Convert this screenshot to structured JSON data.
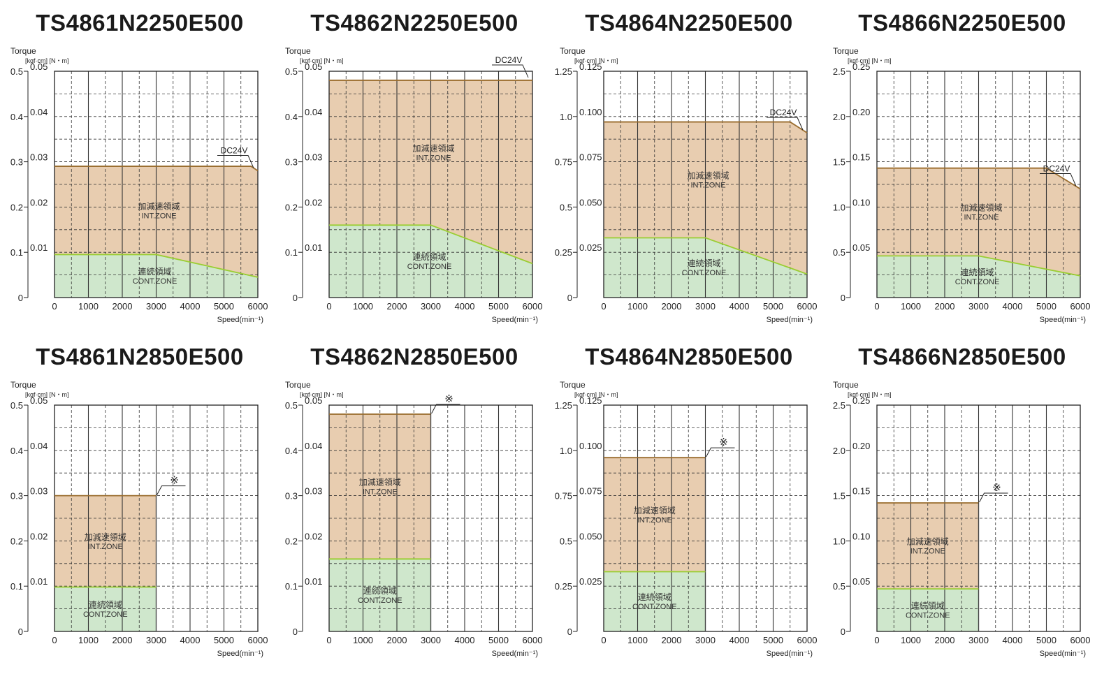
{
  "labels": {
    "torque": "Torque",
    "units": "[kgf·cm] [N・m]",
    "speed": "Speed(min⁻¹)",
    "int_zone_jp": "加減速領域",
    "int_zone_en": "INT.ZONE",
    "cont_zone_jp": "連続領域",
    "cont_zone_en": "CONT.ZONE"
  },
  "colors": {
    "int_zone": "#e8cdb0",
    "cont_zone": "#cfe7cc",
    "int_line": "#9a6d2e",
    "cont_line": "#9acd32",
    "grid": "#333333"
  },
  "chart_data": [
    {
      "type": "area",
      "title": "TS4861N2250E500",
      "xlabel": "Speed(min⁻¹)",
      "ylabel": "Torque",
      "x_ticks": [
        "0",
        "1000",
        "2000",
        "3000",
        "4000",
        "5000",
        "6000"
      ],
      "y_ticks_kgfcm": [
        "0",
        "0.1",
        "0.2",
        "0.3",
        "0.4",
        "0.5"
      ],
      "y_ticks_nm": [
        "0.01",
        "0.02",
        "0.03",
        "0.04",
        "0.05"
      ],
      "xlim": [
        0,
        6000
      ],
      "ylim_nm": [
        0,
        0.05
      ],
      "grid": true,
      "series": [
        {
          "name": "INT.ZONE",
          "x": [
            0,
            5800,
            6000
          ],
          "y": [
            0.029,
            0.029,
            0.028
          ]
        },
        {
          "name": "CONT.ZONE",
          "x": [
            0,
            3000,
            6000
          ],
          "y": [
            0.0095,
            0.0095,
            0.0045
          ]
        }
      ],
      "annotation": "DC24V"
    },
    {
      "type": "area",
      "title": "TS4862N2250E500",
      "xlabel": "Speed(min⁻¹)",
      "ylabel": "Torque",
      "x_ticks": [
        "0",
        "1000",
        "2000",
        "3000",
        "4000",
        "5000",
        "6000"
      ],
      "y_ticks_kgfcm": [
        "0",
        "0.1",
        "0.2",
        "0.3",
        "0.4",
        "0.5"
      ],
      "y_ticks_nm": [
        "0.01",
        "0.02",
        "0.03",
        "0.04",
        "0.05"
      ],
      "xlim": [
        0,
        6000
      ],
      "ylim_nm": [
        0,
        0.05
      ],
      "grid": true,
      "series": [
        {
          "name": "INT.ZONE",
          "x": [
            0,
            6000
          ],
          "y": [
            0.048,
            0.048
          ]
        },
        {
          "name": "CONT.ZONE",
          "x": [
            0,
            3000,
            6000
          ],
          "y": [
            0.016,
            0.016,
            0.0075
          ]
        }
      ],
      "annotation": "DC24V"
    },
    {
      "type": "area",
      "title": "TS4864N2250E500",
      "xlabel": "Speed(min⁻¹)",
      "ylabel": "Torque",
      "x_ticks": [
        "0",
        "1000",
        "2000",
        "3000",
        "4000",
        "5000",
        "6000"
      ],
      "y_ticks_kgfcm": [
        "0",
        "0.25",
        "0.5",
        "0.75",
        "1.0",
        "1.25"
      ],
      "y_ticks_nm": [
        "0.025",
        "0.050",
        "0.075",
        "0.100",
        "0.125"
      ],
      "xlim": [
        0,
        6000
      ],
      "ylim_nm": [
        0,
        0.125
      ],
      "grid": true,
      "series": [
        {
          "name": "INT.ZONE",
          "x": [
            0,
            5500,
            6000
          ],
          "y": [
            0.097,
            0.097,
            0.091
          ]
        },
        {
          "name": "CONT.ZONE",
          "x": [
            0,
            3000,
            6000
          ],
          "y": [
            0.033,
            0.033,
            0.013
          ]
        }
      ],
      "annotation": "DC24V"
    },
    {
      "type": "area",
      "title": "TS4866N2250E500",
      "xlabel": "Speed(min⁻¹)",
      "ylabel": "Torque",
      "x_ticks": [
        "0",
        "1000",
        "2000",
        "3000",
        "4000",
        "5000",
        "6000"
      ],
      "y_ticks_kgfcm": [
        "0",
        "0.5",
        "1.0",
        "1.5",
        "2.0",
        "2.5"
      ],
      "y_ticks_nm": [
        "0.05",
        "0.10",
        "0.15",
        "0.20",
        "0.25"
      ],
      "xlim": [
        0,
        6000
      ],
      "ylim_nm": [
        0,
        0.25
      ],
      "grid": true,
      "series": [
        {
          "name": "INT.ZONE",
          "x": [
            0,
            5000,
            6000
          ],
          "y": [
            0.143,
            0.143,
            0.12
          ]
        },
        {
          "name": "CONT.ZONE",
          "x": [
            0,
            3000,
            6000
          ],
          "y": [
            0.046,
            0.046,
            0.024
          ]
        }
      ],
      "annotation": "DC24V"
    },
    {
      "type": "area",
      "title": "TS4861N2850E500",
      "xlabel": "Speed(min⁻¹)",
      "ylabel": "Torque",
      "x_ticks": [
        "0",
        "1000",
        "2000",
        "3000",
        "4000",
        "5000",
        "6000"
      ],
      "y_ticks_kgfcm": [
        "0",
        "0.1",
        "0.2",
        "0.3",
        "0.4",
        "0.5"
      ],
      "y_ticks_nm": [
        "0.01",
        "0.02",
        "0.03",
        "0.04",
        "0.05"
      ],
      "xlim": [
        0,
        6000
      ],
      "ylim_nm": [
        0,
        0.05
      ],
      "grid": true,
      "series": [
        {
          "name": "INT.ZONE",
          "x": [
            0,
            3000
          ],
          "y": [
            0.03,
            0.03
          ]
        },
        {
          "name": "CONT.ZONE",
          "x": [
            0,
            3000
          ],
          "y": [
            0.0098,
            0.0098
          ]
        }
      ],
      "annotation": "※"
    },
    {
      "type": "area",
      "title": "TS4862N2850E500",
      "xlabel": "Speed(min⁻¹)",
      "ylabel": "Torque",
      "x_ticks": [
        "0",
        "1000",
        "2000",
        "3000",
        "4000",
        "5000",
        "6000"
      ],
      "y_ticks_kgfcm": [
        "0",
        "0.1",
        "0.2",
        "0.3",
        "0.4",
        "0.5"
      ],
      "y_ticks_nm": [
        "0.01",
        "0.02",
        "0.03",
        "0.04",
        "0.05"
      ],
      "xlim": [
        0,
        6000
      ],
      "ylim_nm": [
        0,
        0.05
      ],
      "grid": true,
      "series": [
        {
          "name": "INT.ZONE",
          "x": [
            0,
            3000
          ],
          "y": [
            0.048,
            0.048
          ]
        },
        {
          "name": "CONT.ZONE",
          "x": [
            0,
            3000
          ],
          "y": [
            0.016,
            0.016
          ]
        }
      ],
      "annotation": "※"
    },
    {
      "type": "area",
      "title": "TS4864N2850E500",
      "xlabel": "Speed(min⁻¹)",
      "ylabel": "Torque",
      "x_ticks": [
        "0",
        "1000",
        "2000",
        "3000",
        "4000",
        "5000",
        "6000"
      ],
      "y_ticks_kgfcm": [
        "0",
        "0.25",
        "0.5",
        "0.75",
        "1.0",
        "1.25"
      ],
      "y_ticks_nm": [
        "0.025",
        "0.050",
        "0.075",
        "0.100",
        "0.125"
      ],
      "xlim": [
        0,
        6000
      ],
      "ylim_nm": [
        0,
        0.125
      ],
      "grid": true,
      "series": [
        {
          "name": "INT.ZONE",
          "x": [
            0,
            3000
          ],
          "y": [
            0.096,
            0.096
          ]
        },
        {
          "name": "CONT.ZONE",
          "x": [
            0,
            3000
          ],
          "y": [
            0.033,
            0.033
          ]
        }
      ],
      "annotation": "※"
    },
    {
      "type": "area",
      "title": "TS4866N2850E500",
      "xlabel": "Speed(min⁻¹)",
      "ylabel": "Torque",
      "x_ticks": [
        "0",
        "1000",
        "2000",
        "3000",
        "4000",
        "5000",
        "6000"
      ],
      "y_ticks_kgfcm": [
        "0",
        "0.5",
        "1.0",
        "1.5",
        "2.0",
        "2.5"
      ],
      "y_ticks_nm": [
        "0.05",
        "0.10",
        "0.15",
        "0.20",
        "0.25"
      ],
      "xlim": [
        0,
        6000
      ],
      "ylim_nm": [
        0,
        0.25
      ],
      "grid": true,
      "series": [
        {
          "name": "INT.ZONE",
          "x": [
            0,
            3000
          ],
          "y": [
            0.142,
            0.142
          ]
        },
        {
          "name": "CONT.ZONE",
          "x": [
            0,
            3000
          ],
          "y": [
            0.047,
            0.047
          ]
        }
      ],
      "annotation": "※"
    }
  ]
}
